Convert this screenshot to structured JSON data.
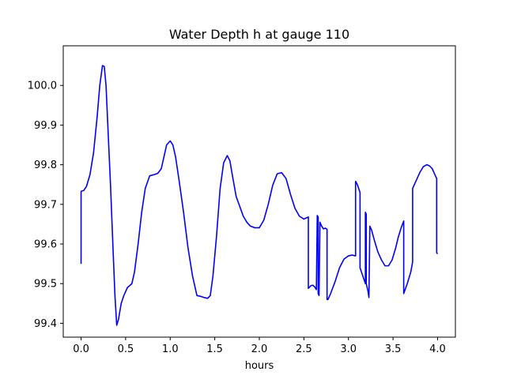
{
  "chart_data": {
    "type": "line",
    "title": "Water Depth h at gauge 110",
    "xlabel": "hours",
    "ylabel": "",
    "xlim": [
      -0.2,
      4.2
    ],
    "ylim": [
      99.365,
      100.1
    ],
    "xticks": [
      0.0,
      0.5,
      1.0,
      1.5,
      2.0,
      2.5,
      3.0,
      3.5,
      4.0
    ],
    "xtick_labels": [
      "0.0",
      "0.5",
      "1.0",
      "1.5",
      "2.0",
      "2.5",
      "3.0",
      "3.5",
      "4.0"
    ],
    "yticks": [
      99.4,
      99.5,
      99.6,
      99.7,
      99.8,
      99.9,
      100.0
    ],
    "ytick_labels": [
      "99.4",
      "99.5",
      "99.6",
      "99.7",
      "99.8",
      "99.9",
      "100.0"
    ],
    "grid": false,
    "color": "#0000ff",
    "series": [
      {
        "name": "",
        "x": [
          0.0,
          0.0,
          0.03,
          0.06,
          0.1,
          0.14,
          0.18,
          0.21,
          0.24,
          0.26,
          0.28,
          0.3,
          0.33,
          0.36,
          0.38,
          0.4,
          0.42,
          0.45,
          0.48,
          0.52,
          0.57,
          0.6,
          0.64,
          0.68,
          0.72,
          0.77,
          0.82,
          0.86,
          0.9,
          0.93,
          0.96,
          1.0,
          1.03,
          1.06,
          1.1,
          1.15,
          1.2,
          1.25,
          1.3,
          1.34,
          1.38,
          1.42,
          1.45,
          1.48,
          1.52,
          1.56,
          1.6,
          1.64,
          1.67,
          1.7,
          1.74,
          1.78,
          1.82,
          1.86,
          1.9,
          1.95,
          2.0,
          2.05,
          2.1,
          2.15,
          2.2,
          2.25,
          2.3,
          2.35,
          2.4,
          2.45,
          2.5,
          2.55,
          2.55,
          2.58,
          2.6,
          2.62,
          2.64,
          2.65,
          2.66,
          2.66,
          2.67,
          2.68,
          2.68,
          2.7,
          2.72,
          2.74,
          2.76,
          2.76,
          2.77,
          2.8,
          2.85,
          2.9,
          2.95,
          3.0,
          3.04,
          3.08,
          3.08,
          3.1,
          3.13,
          3.13,
          3.16,
          3.19,
          3.19,
          3.2,
          3.2,
          3.22,
          3.23,
          3.24,
          3.26,
          3.29,
          3.33,
          3.37,
          3.41,
          3.45,
          3.49,
          3.53,
          3.56,
          3.59,
          3.62,
          3.62,
          3.66,
          3.7,
          3.72,
          3.72,
          3.76,
          3.8,
          3.84,
          3.88,
          3.91,
          3.94,
          3.97,
          3.99,
          3.99,
          4.0
        ],
        "y": [
          99.55,
          99.733,
          99.735,
          99.745,
          99.775,
          99.83,
          99.92,
          100.0,
          100.05,
          100.048,
          100.0,
          99.9,
          99.75,
          99.58,
          99.47,
          99.395,
          99.41,
          99.45,
          99.47,
          99.49,
          99.5,
          99.53,
          99.6,
          99.68,
          99.74,
          99.772,
          99.775,
          99.778,
          99.79,
          99.82,
          99.85,
          99.86,
          99.85,
          99.82,
          99.76,
          99.68,
          99.59,
          99.52,
          99.47,
          99.468,
          99.465,
          99.463,
          99.47,
          99.52,
          99.62,
          99.74,
          99.805,
          99.823,
          99.81,
          99.77,
          99.72,
          99.695,
          99.67,
          99.655,
          99.645,
          99.641,
          99.641,
          99.66,
          99.7,
          99.748,
          99.777,
          99.78,
          99.765,
          99.725,
          99.69,
          99.67,
          99.663,
          99.668,
          99.488,
          99.495,
          99.496,
          99.492,
          99.485,
          99.672,
          99.668,
          99.475,
          99.47,
          99.652,
          99.655,
          99.645,
          99.638,
          99.64,
          99.637,
          99.46,
          99.46,
          99.475,
          99.505,
          99.54,
          99.562,
          99.57,
          99.572,
          99.57,
          99.758,
          99.75,
          99.73,
          99.54,
          99.52,
          99.5,
          99.68,
          99.675,
          99.5,
          99.48,
          99.465,
          99.645,
          99.635,
          99.61,
          99.58,
          99.56,
          99.545,
          99.545,
          99.56,
          99.59,
          99.618,
          99.64,
          99.658,
          99.475,
          99.5,
          99.53,
          99.555,
          99.74,
          99.76,
          99.78,
          99.795,
          99.8,
          99.797,
          99.79,
          99.775,
          99.765,
          99.578,
          99.575
        ]
      }
    ]
  }
}
